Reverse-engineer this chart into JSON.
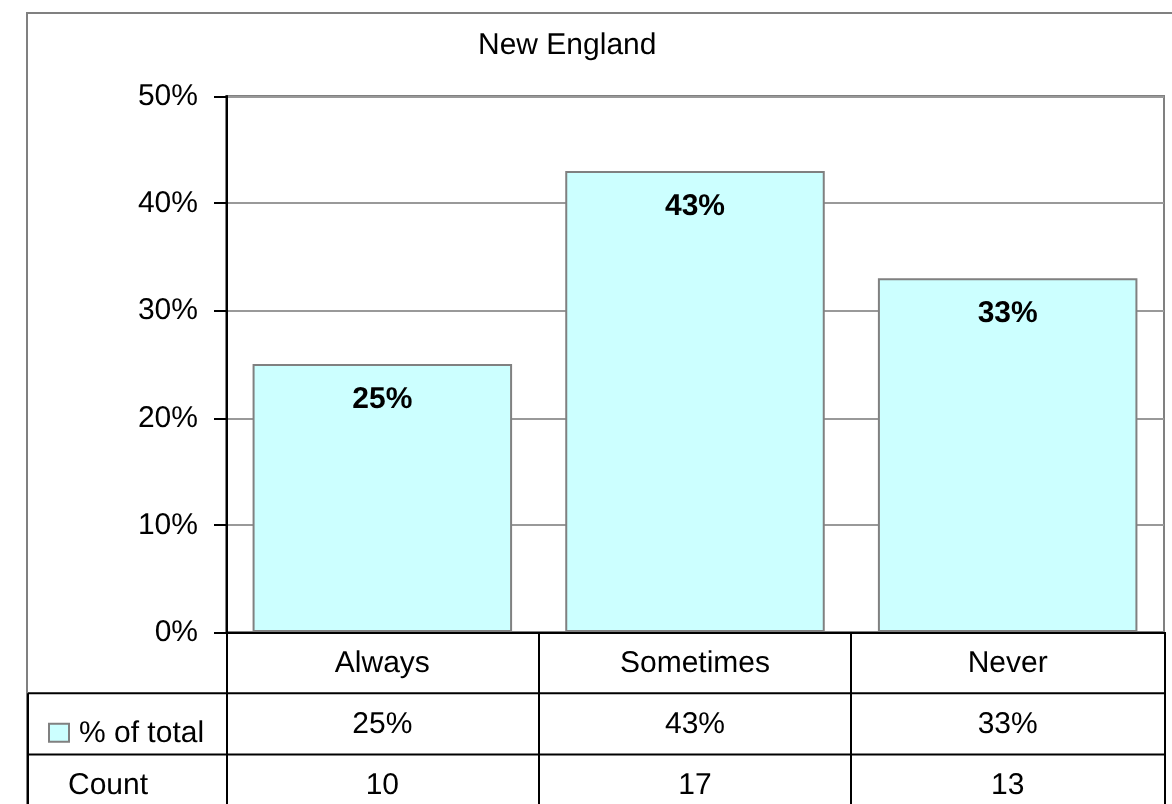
{
  "chart_data": {
    "type": "bar",
    "title": "New England",
    "categories": [
      "Always",
      "Sometimes",
      "Never"
    ],
    "series": [
      {
        "name": "% of total",
        "color": "#ccffff",
        "values": [
          25,
          43,
          33
        ],
        "value_labels": [
          "25%",
          "43%",
          "33%"
        ]
      }
    ],
    "ylim": [
      0,
      50
    ],
    "yticks": [
      {
        "value": 0,
        "label": "0%"
      },
      {
        "value": 10,
        "label": "10%"
      },
      {
        "value": 20,
        "label": "20%"
      },
      {
        "value": 30,
        "label": "30%"
      },
      {
        "value": 40,
        "label": "40%"
      },
      {
        "value": 50,
        "label": "50%"
      }
    ],
    "grid": "y",
    "legend": "bottom left",
    "annotations": [
      "Count",
      "10",
      "17",
      "13"
    ]
  }
}
